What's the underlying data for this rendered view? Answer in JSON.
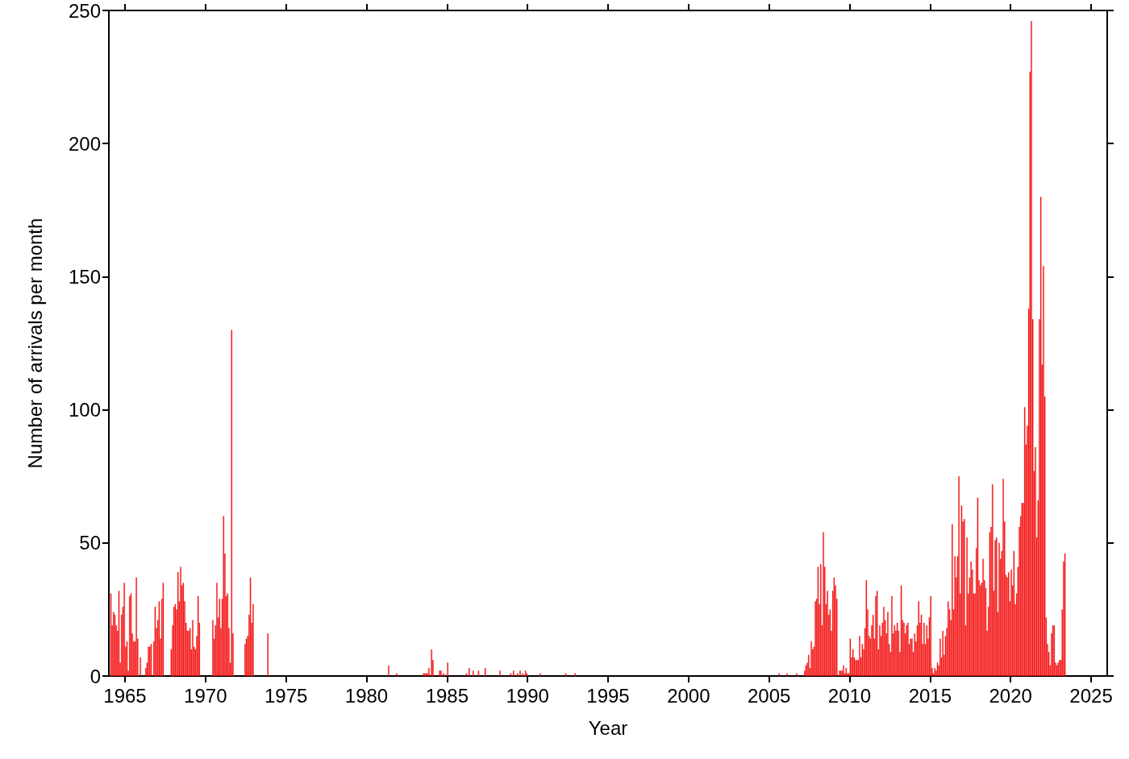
{
  "chart_data": {
    "type": "bar",
    "xlabel": "Year",
    "ylabel": "Number of arrivals per month",
    "color": "#ff1a1a",
    "x": [
      "1964-02",
      "1964-03",
      "1964-04",
      "1964-05",
      "1964-06",
      "1964-07",
      "1964-08",
      "1964-09",
      "1964-10",
      "1964-11",
      "1964-12",
      "1965-01",
      "1965-02",
      "1965-03",
      "1965-04",
      "1965-05",
      "1965-06",
      "1965-07",
      "1965-08",
      "1965-09",
      "1965-10",
      "1965-12",
      "1966-04",
      "1966-05",
      "1966-06",
      "1966-07",
      "1966-08",
      "1966-10",
      "1966-11",
      "1966-12",
      "1967-01",
      "1967-02",
      "1967-03",
      "1967-04",
      "1967-05",
      "1967-11",
      "1967-12",
      "1968-01",
      "1968-02",
      "1968-03",
      "1968-04",
      "1968-05",
      "1968-06",
      "1968-07",
      "1968-08",
      "1968-09",
      "1968-10",
      "1968-11",
      "1968-12",
      "1969-01",
      "1969-02",
      "1969-03",
      "1969-04",
      "1969-05",
      "1969-06",
      "1969-07",
      "1969-08",
      "1970-06",
      "1970-07",
      "1970-08",
      "1970-09",
      "1970-10",
      "1970-11",
      "1970-12",
      "1971-01",
      "1971-02",
      "1971-03",
      "1971-04",
      "1971-05",
      "1971-06",
      "1971-07",
      "1971-08",
      "1971-09",
      "1972-06",
      "1972-07",
      "1972-08",
      "1972-09",
      "1972-10",
      "1972-11",
      "1972-12",
      "1973-11",
      "1981-05",
      "1981-11",
      "1983-07",
      "1983-08",
      "1983-09",
      "1983-10",
      "1983-11",
      "1984-01",
      "1984-02",
      "1984-07",
      "1984-08",
      "1984-10",
      "1985-01",
      "1986-03",
      "1986-05",
      "1986-08",
      "1986-12",
      "1987-05",
      "1988-04",
      "1988-12",
      "1989-02",
      "1989-05",
      "1989-07",
      "1989-09",
      "1989-11",
      "1989-12",
      "1990-10",
      "1992-05",
      "1992-12",
      "2005-08",
      "2006-02",
      "2006-09",
      "2007-03",
      "2007-04",
      "2007-05",
      "2007-06",
      "2007-07",
      "2007-08",
      "2007-09",
      "2007-10",
      "2007-11",
      "2007-12",
      "2008-01",
      "2008-02",
      "2008-03",
      "2008-04",
      "2008-05",
      "2008-06",
      "2008-07",
      "2008-08",
      "2008-09",
      "2008-10",
      "2008-11",
      "2008-12",
      "2009-01",
      "2009-02",
      "2009-03",
      "2009-05",
      "2009-06",
      "2009-07",
      "2009-08",
      "2009-09",
      "2009-10",
      "2009-11",
      "2009-12",
      "2010-01",
      "2010-02",
      "2010-03",
      "2010-04",
      "2010-05",
      "2010-06",
      "2010-07",
      "2010-08",
      "2010-09",
      "2010-10",
      "2010-11",
      "2010-12",
      "2011-01",
      "2011-02",
      "2011-03",
      "2011-04",
      "2011-05",
      "2011-06",
      "2011-07",
      "2011-08",
      "2011-09",
      "2011-10",
      "2011-11",
      "2011-12",
      "2012-01",
      "2012-02",
      "2012-03",
      "2012-04",
      "2012-05",
      "2012-06",
      "2012-07",
      "2012-08",
      "2012-09",
      "2012-10",
      "2012-11",
      "2012-12",
      "2013-01",
      "2013-02",
      "2013-03",
      "2013-04",
      "2013-05",
      "2013-06",
      "2013-07",
      "2013-08",
      "2013-09",
      "2013-10",
      "2013-11",
      "2013-12",
      "2014-01",
      "2014-02",
      "2014-03",
      "2014-04",
      "2014-05",
      "2014-06",
      "2014-07",
      "2014-08",
      "2014-09",
      "2014-10",
      "2014-11",
      "2014-12",
      "2015-01",
      "2015-02",
      "2015-03",
      "2015-04",
      "2015-05",
      "2015-06",
      "2015-07",
      "2015-08",
      "2015-09",
      "2015-10",
      "2015-11",
      "2015-12",
      "2016-01",
      "2016-02",
      "2016-03",
      "2016-04",
      "2016-05",
      "2016-06",
      "2016-07",
      "2016-08",
      "2016-09",
      "2016-10",
      "2016-11",
      "2016-12",
      "2017-01",
      "2017-02",
      "2017-03",
      "2017-04",
      "2017-05",
      "2017-06",
      "2017-07",
      "2017-08",
      "2017-09",
      "2017-10",
      "2017-11",
      "2017-12",
      "2018-01",
      "2018-02",
      "2018-03",
      "2018-04",
      "2018-05",
      "2018-06",
      "2018-07",
      "2018-08",
      "2018-09",
      "2018-10",
      "2018-11",
      "2018-12",
      "2019-01",
      "2019-02",
      "2019-03",
      "2019-04",
      "2019-05",
      "2019-06",
      "2019-07",
      "2019-08",
      "2019-09",
      "2019-10",
      "2019-11",
      "2019-12",
      "2020-01",
      "2020-02",
      "2020-03",
      "2020-04",
      "2020-05",
      "2020-06",
      "2020-07",
      "2020-08",
      "2020-09",
      "2020-10",
      "2020-11",
      "2020-12",
      "2021-01",
      "2021-02",
      "2021-03",
      "2021-04",
      "2021-05",
      "2021-06",
      "2021-07",
      "2021-08",
      "2021-09",
      "2021-10",
      "2021-11",
      "2021-12",
      "2022-01",
      "2022-02",
      "2022-03",
      "2022-04",
      "2022-05",
      "2022-06",
      "2022-07",
      "2022-08",
      "2022-09",
      "2022-10",
      "2022-11",
      "2022-12",
      "2023-01",
      "2023-02",
      "2023-03",
      "2023-04",
      "2023-05"
    ],
    "values": [
      31,
      19,
      24,
      23,
      19,
      17,
      32,
      5,
      23,
      26,
      35,
      11,
      13,
      2,
      30,
      31,
      16,
      13,
      13,
      37,
      14,
      7,
      3,
      5,
      11,
      11,
      12,
      13,
      26,
      18,
      21,
      28,
      14,
      29,
      35,
      10,
      19,
      26,
      27,
      25,
      39,
      28,
      41,
      34,
      35,
      28,
      20,
      17,
      17,
      18,
      10,
      21,
      11,
      10,
      15,
      30,
      20,
      21,
      14,
      19,
      35,
      22,
      29,
      18,
      29,
      60,
      46,
      30,
      31,
      18,
      5,
      130,
      16,
      12,
      14,
      15,
      23,
      37,
      20,
      27,
      16,
      4,
      1,
      1,
      1,
      1,
      1,
      3,
      10,
      6,
      2,
      2,
      1,
      5,
      1,
      3,
      2,
      2,
      3,
      2,
      1,
      2,
      1,
      2,
      1,
      2,
      1,
      1,
      1,
      1,
      1,
      1,
      1,
      2,
      4,
      5,
      8,
      3,
      13,
      10,
      11,
      28,
      29,
      41,
      27,
      42,
      19,
      54,
      41,
      27,
      32,
      23,
      25,
      17,
      32,
      37,
      34,
      29,
      2,
      2,
      2,
      4,
      1,
      3,
      1,
      1,
      14,
      7,
      10,
      7,
      6,
      6,
      6,
      15,
      7,
      12,
      10,
      18,
      36,
      25,
      15,
      14,
      19,
      23,
      14,
      30,
      32,
      10,
      19,
      15,
      20,
      26,
      21,
      16,
      24,
      12,
      9,
      30,
      16,
      19,
      17,
      20,
      17,
      9,
      34,
      21,
      20,
      16,
      19,
      20,
      12,
      14,
      14,
      9,
      16,
      13,
      19,
      28,
      20,
      23,
      12,
      20,
      12,
      19,
      14,
      22,
      30,
      3,
      1,
      3,
      2,
      5,
      4,
      14,
      7,
      17,
      8,
      15,
      18,
      28,
      25,
      21,
      57,
      25,
      45,
      37,
      45,
      75,
      31,
      64,
      58,
      59,
      19,
      52,
      31,
      37,
      43,
      40,
      31,
      31,
      48,
      67,
      36,
      34,
      35,
      44,
      36,
      33,
      17,
      26,
      54,
      56,
      72,
      32,
      51,
      52,
      24,
      50,
      44,
      47,
      74,
      58,
      38,
      37,
      39,
      28,
      40,
      34,
      47,
      27,
      31,
      41,
      56,
      60,
      65,
      65,
      101,
      87,
      94,
      138,
      227,
      246,
      134,
      77,
      86,
      52,
      66,
      134,
      180,
      117,
      154,
      105,
      22,
      12,
      9,
      4,
      16,
      19,
      19,
      5,
      4,
      5,
      6,
      6,
      25,
      43,
      46
    ],
    "xlim": [
      "1964-01",
      "2026-01"
    ],
    "xticks": [
      "1965",
      "1970",
      "1975",
      "1980",
      "1985",
      "1990",
      "1995",
      "2000",
      "2005",
      "2010",
      "2015",
      "2020",
      "2025"
    ],
    "ylim": [
      0,
      250
    ],
    "yticks": [
      0,
      50,
      100,
      150,
      200,
      250
    ]
  }
}
